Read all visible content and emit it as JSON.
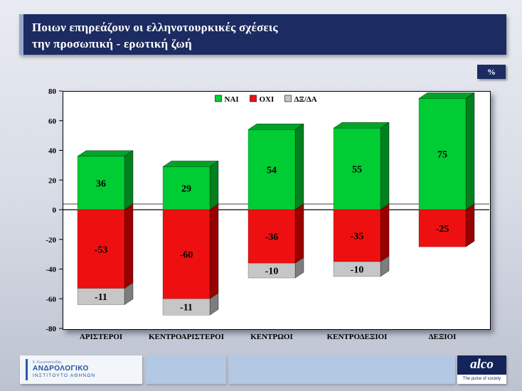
{
  "title": {
    "line1": "Ποιων επηρεάζουν οι ελληνοτουρκικές σχέσεις",
    "line2": "την προσωπική - ερωτική ζωή"
  },
  "percent_badge": "%",
  "chart_data": {
    "type": "bar",
    "stacked": true,
    "title": "Ποιων επηρεάζουν οι ελληνοτουρκικές σχέσεις την προσωπική - ερωτική ζωή",
    "unit": "%",
    "categories": [
      "ΑΡΙΣΤΕΡΟΙ",
      "ΚΕΝΤΡΟΑΡΙΣΤΕΡΟΙ",
      "ΚΕΝΤΡΩΟΙ",
      "ΚΕΝΤΡΟΔΕΞΙΟΙ",
      "ΔΕΞΙΟΙ"
    ],
    "series": [
      {
        "name": "ΝΑΙ",
        "color": "#00cc33",
        "side_color": "#00801f",
        "top_color": "#00a528",
        "values": [
          36,
          29,
          54,
          55,
          75
        ]
      },
      {
        "name": "ΟΧΙ",
        "color": "#ee1010",
        "side_color": "#990000",
        "top_color": "#c00d0d",
        "values": [
          -53,
          -60,
          -36,
          -35,
          -25
        ]
      },
      {
        "name": "ΔΞ/ΔΑ",
        "color": "#c6c6c6",
        "side_color": "#7d7d7d",
        "top_color": "#ababab",
        "values": [
          -11,
          -11,
          -10,
          -10,
          0
        ]
      }
    ],
    "ylim": [
      -80,
      80
    ],
    "yticks": [
      80,
      60,
      40,
      20,
      0,
      -20,
      -40,
      -60,
      -80
    ],
    "legend_position": "top-center",
    "grid": false
  },
  "footer": {
    "logo_left": {
      "small_text": "Κ. Κωνσταντινίδης",
      "line1": "ΑΝΔΡΟΛΟΓΙΚΟ",
      "line2": "ΙΝΣΤΙΤΟΥΤΟ ΑΘΗΝΩΝ"
    },
    "logo_right": {
      "name": "alco",
      "tagline": "The pulse of society"
    }
  }
}
